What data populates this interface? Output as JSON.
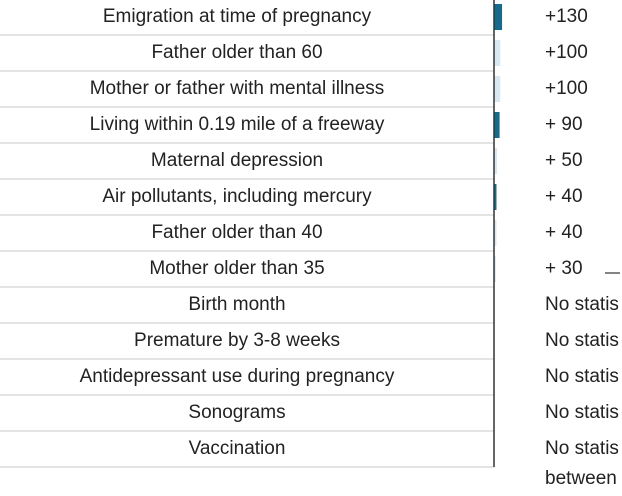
{
  "chart_data": {
    "type": "bar",
    "categories": [
      "Emigration at time of pregnancy",
      "Father older than 60",
      "Mother or father with mental illness",
      "Living within 0.19 mile of a freeway",
      "Maternal depression",
      "Air pollutants, including mercury",
      "Father older than 40",
      "Mother older than 35",
      "Birth month",
      "Premature by 3-8 weeks",
      "Antidepressant use during pregnancy",
      "Sonograms",
      "Vaccination"
    ],
    "values": [
      130,
      100,
      100,
      90,
      50,
      40,
      40,
      30,
      null,
      null,
      null,
      null,
      null
    ],
    "value_labels": [
      "+130",
      "+100",
      "+100",
      "+ 90",
      "+ 50",
      "+ 40",
      "+ 40",
      "+ 30",
      "No statis",
      "No statis",
      "No statis",
      "No statis",
      "No statis"
    ],
    "colors": [
      "#176a8b",
      "#d8e8f2",
      "#d8e8f2",
      "#176a8b",
      "#d8e8f2",
      "#176a8b",
      "#d8e8f2",
      "#d8e8f2",
      null,
      null,
      null,
      null,
      null
    ],
    "note": "between"
  }
}
